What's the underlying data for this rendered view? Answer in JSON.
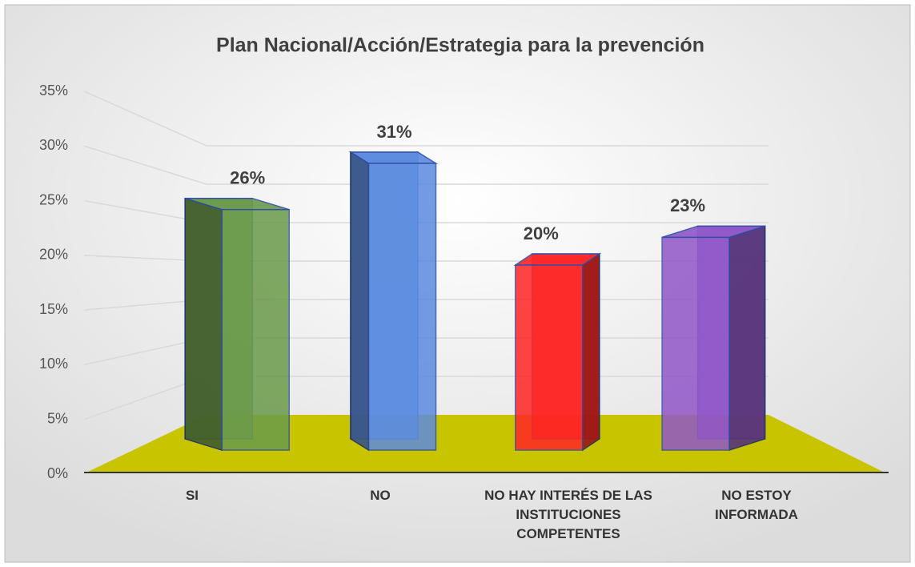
{
  "chart_data": {
    "type": "bar3d",
    "title": "Plan Nacional/Acción/Estrategia para la prevención",
    "categories": [
      "SI",
      "NO",
      "NO HAY INTERÉS DE LAS INSTITUCIONES COMPETENTES",
      "NO ESTOY INFORMADA"
    ],
    "values": [
      26,
      31,
      20,
      23
    ],
    "value_labels": [
      "26%",
      "31%",
      "20%",
      "23%"
    ],
    "colors": [
      "#6a9a4a",
      "#5b8be0",
      "#ff2424",
      "#9056c8"
    ],
    "ylim": [
      0,
      35
    ],
    "yticks": [
      {
        "value": 0,
        "label": "0%"
      },
      {
        "value": 5,
        "label": "5%"
      },
      {
        "value": 10,
        "label": "10%"
      },
      {
        "value": 15,
        "label": "15%"
      },
      {
        "value": 20,
        "label": "20%"
      },
      {
        "value": 25,
        "label": "25%"
      },
      {
        "value": 30,
        "label": "30%"
      },
      {
        "value": 35,
        "label": "35%"
      }
    ],
    "grid": true,
    "floor_color": "#c8c400"
  }
}
